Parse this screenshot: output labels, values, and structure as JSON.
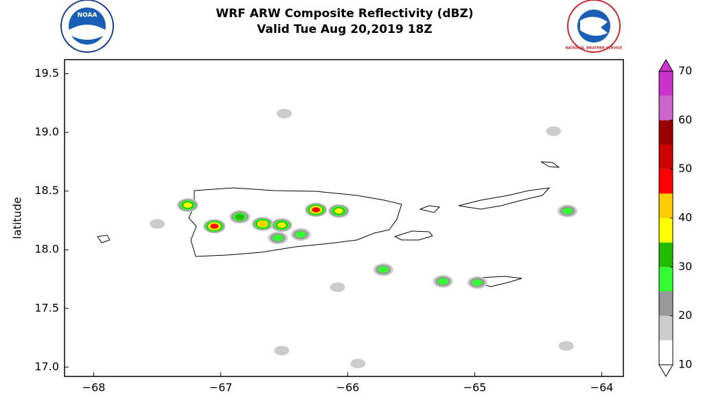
{
  "chart_data": {
    "type": "reflectivity-map",
    "title": "WRF ARW Composite Reflectivity (dBZ)",
    "subtitle": "Valid Tue Aug 20,2019 18Z",
    "y_label": "latitude",
    "xlim": [
      -68.23,
      -63.83
    ],
    "ylim": [
      16.92,
      19.62
    ],
    "xticks": [
      {
        "value": -68,
        "label": "−68"
      },
      {
        "value": -67,
        "label": "−67"
      },
      {
        "value": -66,
        "label": "−66"
      },
      {
        "value": -65,
        "label": "−65"
      },
      {
        "value": -64,
        "label": "−64"
      }
    ],
    "yticks": [
      {
        "value": 17,
        "label": "17.0"
      },
      17.5,
      {
        "value": 18,
        "label": "18.0"
      },
      18.5,
      {
        "value": 19,
        "label": "19.0"
      },
      19.5
    ],
    "colorbar": {
      "levels": [
        10,
        15,
        20,
        25,
        30,
        35,
        40,
        45,
        50,
        55,
        60,
        65,
        70
      ],
      "colors": [
        "#ffffff",
        "#cccccc",
        "#999999",
        "#33ff33",
        "#22bb00",
        "#ffff00",
        "#ffcc00",
        "#ff0000",
        "#cc0000",
        "#990000",
        "#cc66cc",
        "#cc33cc"
      ],
      "ticks": [
        10,
        20,
        30,
        40,
        50,
        60,
        70
      ]
    },
    "cells": [
      {
        "x": -67.05,
        "y": 18.2,
        "value": 50
      },
      {
        "x": -67.26,
        "y": 18.38,
        "value": 40
      },
      {
        "x": -66.67,
        "y": 18.22,
        "value": 45
      },
      {
        "x": -66.25,
        "y": 18.34,
        "value": 50
      },
      {
        "x": -66.52,
        "y": 18.21,
        "value": 40
      },
      {
        "x": -66.85,
        "y": 18.28,
        "value": 35
      },
      {
        "x": -66.55,
        "y": 18.1,
        "value": 30
      },
      {
        "x": -66.07,
        "y": 18.33,
        "value": 40
      },
      {
        "x": -66.37,
        "y": 18.13,
        "value": 30
      },
      {
        "x": -65.72,
        "y": 17.83,
        "value": 30
      },
      {
        "x": -65.25,
        "y": 17.73,
        "value": 30
      },
      {
        "x": -64.98,
        "y": 17.72,
        "value": 30
      },
      {
        "x": -64.27,
        "y": 18.33,
        "value": 30
      },
      {
        "x": -66.5,
        "y": 19.16,
        "value": 20
      },
      {
        "x": -64.38,
        "y": 19.01,
        "value": 20
      },
      {
        "x": -66.52,
        "y": 17.14,
        "value": 20
      },
      {
        "x": -65.92,
        "y": 17.03,
        "value": 20
      },
      {
        "x": -64.28,
        "y": 17.18,
        "value": 20
      },
      {
        "x": -66.08,
        "y": 17.68,
        "value": 20
      },
      {
        "x": -67.5,
        "y": 18.22,
        "value": 20
      }
    ]
  },
  "logos": {
    "left": "NOAA",
    "right": "NATIONAL WEATHER SERVICE"
  }
}
